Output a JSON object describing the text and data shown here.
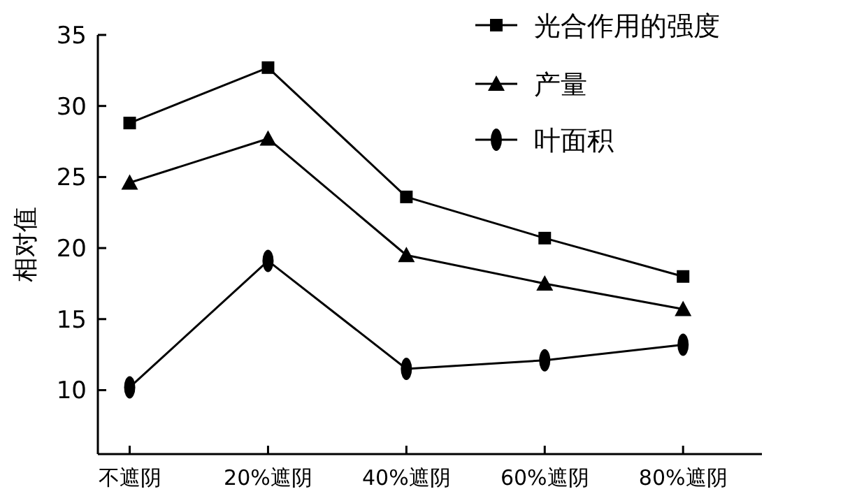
{
  "chart_data": {
    "type": "line",
    "ylabel": "相对值",
    "categories": [
      "不遮阴",
      "20%遮阴",
      "40%遮阴",
      "60%遮阴",
      "80%遮阴"
    ],
    "ylim": [
      5.5,
      35
    ],
    "yticks": [
      10,
      15,
      20,
      25,
      30,
      35
    ],
    "grid": false,
    "legend": "top right",
    "series": [
      {
        "name": "光合作用的强度",
        "color": "#000000",
        "marker": "square",
        "values": [
          28.8,
          32.7,
          23.6,
          20.7,
          18.0
        ]
      },
      {
        "name": "产量",
        "color": "#000000",
        "marker": "triangle",
        "values": [
          24.6,
          27.7,
          19.5,
          17.5,
          15.7
        ]
      },
      {
        "name": "叶面积",
        "color": "#000000",
        "marker": "circle",
        "values": [
          10.2,
          19.1,
          11.5,
          12.1,
          13.2
        ]
      }
    ]
  }
}
